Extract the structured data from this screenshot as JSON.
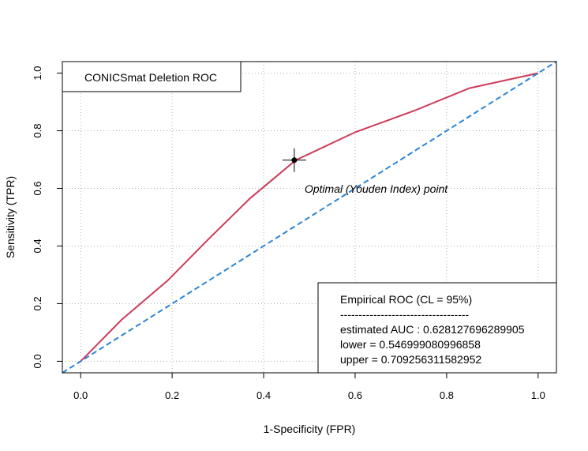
{
  "chart_data": {
    "type": "line",
    "xlabel": "1-Specificity (FPR)",
    "ylabel": "Sensitivity (TPR)",
    "xlim": [
      -0.04,
      1.04
    ],
    "ylim": [
      -0.04,
      1.04
    ],
    "xticks": [
      "0.0",
      "0.2",
      "0.4",
      "0.6",
      "0.8",
      "1.0"
    ],
    "yticks": [
      "0.0",
      "0.2",
      "0.4",
      "0.6",
      "0.8",
      "1.0"
    ],
    "grid": true,
    "series": [
      {
        "color": "#cd3b5b",
        "style": "solid",
        "x": [
          0.0,
          0.09,
          0.19,
          0.28,
          0.37,
          0.47,
          0.5,
          0.6,
          0.73,
          0.85,
          1.0
        ],
        "y": [
          0.0,
          0.145,
          0.28,
          0.425,
          0.565,
          0.698,
          0.72,
          0.795,
          0.87,
          0.948,
          1.0
        ]
      },
      {
        "color": "#2b85d6",
        "style": "dashed",
        "x": [
          -0.04,
          1.04
        ],
        "y": [
          -0.04,
          1.04
        ]
      }
    ],
    "optimal_point": {
      "x": 0.467,
      "y": 0.698,
      "label": "Optimal (Youden Index) point"
    },
    "title_box": {
      "text": "CONICSmat Deletion ROC",
      "placement": "top-left"
    },
    "legend": {
      "placement": "bottom-right",
      "lines": [
        "Empirical ROC (CL = 95%)",
        "-----------------------------------",
        "estimated AUC : 0.628127696289905",
        "lower = 0.546999080996858",
        "upper = 0.709256311582952"
      ]
    }
  }
}
